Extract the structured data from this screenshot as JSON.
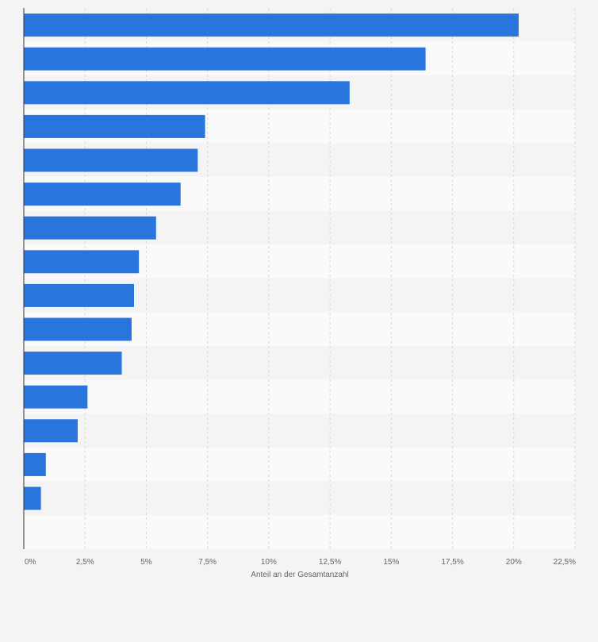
{
  "chart_data": {
    "type": "bar",
    "orientation": "horizontal",
    "categories": [
      "",
      "",
      "",
      "",
      "",
      "",
      "",
      "",
      "",
      "",
      "",
      "",
      "",
      "",
      ""
    ],
    "values": [
      20.2,
      16.4,
      13.3,
      7.4,
      7.1,
      6.4,
      5.4,
      4.7,
      4.5,
      4.4,
      4.0,
      2.6,
      2.2,
      0.9,
      0.7
    ],
    "xlim": [
      0,
      22.5
    ],
    "xticks": [
      0,
      2.5,
      5,
      7.5,
      10,
      12.5,
      15,
      17.5,
      20,
      22.5
    ],
    "xtick_labels": [
      "0%",
      "2,5%",
      "5%",
      "7,5%",
      "10%",
      "12,5%",
      "15%",
      "17,5%",
      "20%",
      "22,5%"
    ],
    "xlabel": "Anteil an der Gesamtanzahl",
    "ylabel": "",
    "title": "",
    "grid": true,
    "bar_color": "#2876dd",
    "band_colors": [
      "#f4f4f4",
      "#fafafa"
    ],
    "gridline_color": "#d8d8d8",
    "axis_color": "#333333"
  }
}
